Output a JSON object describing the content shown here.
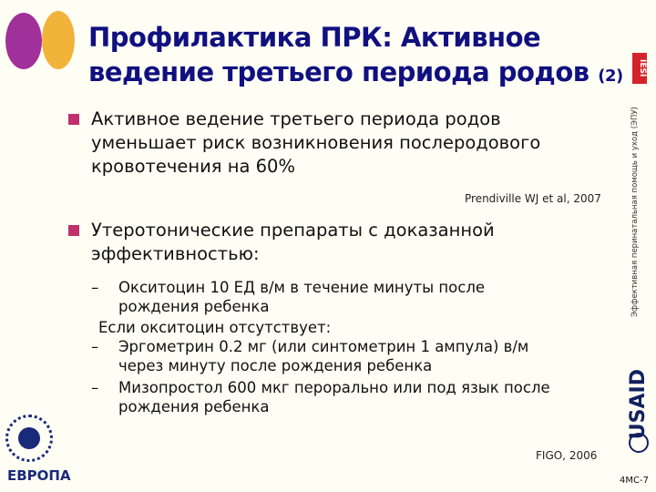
{
  "title": {
    "line1": "Профилактика ПРК: Активное",
    "line2": "ведение третьего периода родов",
    "number": "(2)"
  },
  "side_text": "Эффективная перинатальная помощь и уход (ЭПУ)",
  "logos": {
    "iesi": "IESI",
    "usaid": "USAID",
    "who": "ЕВРОПА"
  },
  "bullets": [
    {
      "lines": [
        "Активное ведение третьего периода родов",
        "уменьшает риск возникновения послеродового",
        "кровотечения на 60%"
      ]
    },
    {
      "lines": [
        "Утеротонические препараты с доказанной",
        "эффективностью:"
      ]
    }
  ],
  "reference1": "Prendiville WJ  et al, 2007",
  "subitems": [
    {
      "dash": "–",
      "lines": [
        "Окситоцин 10 ЕД  в/м в течение минуты после",
        "рождения ребенка"
      ]
    },
    {
      "dash": "",
      "lines": [
        "Если окситоцин отсутствует:"
      ]
    },
    {
      "dash": "–",
      "lines": [
        "Эргометрин 0.2 мг (или синтометрин 1 ампула) в/м",
        "через минуту после рождения ребенка"
      ]
    },
    {
      "dash": "–",
      "lines": [
        "Мизопростол 600 мкг перорально или под язык после",
        "рождения ребенка"
      ]
    }
  ],
  "reference2": "FIGO, 2006",
  "slide_code": "4MC-7",
  "colors": {
    "title": "#101080",
    "bullet": "#c0306a",
    "background": "#fffef4"
  }
}
